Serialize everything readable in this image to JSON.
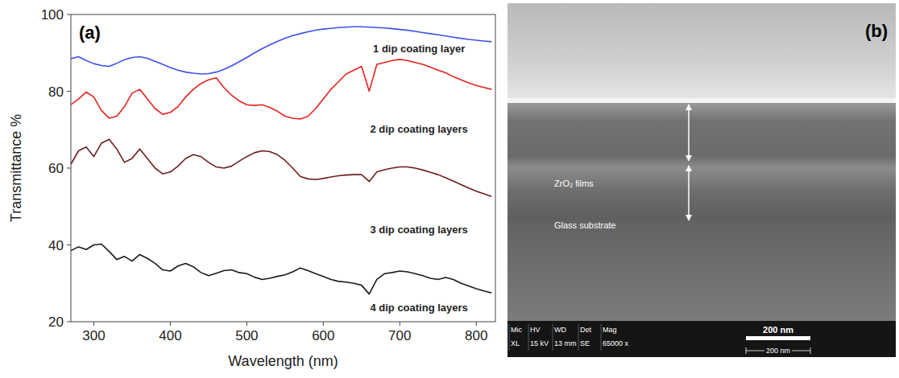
{
  "chart_data": {
    "type": "line",
    "panel_label": "(a)",
    "x_label": "Wavelength (nm)",
    "y_label": "Transmittance %",
    "xlim": [
      270,
      825
    ],
    "xticks": [
      300,
      400,
      500,
      600,
      700,
      800
    ],
    "ylim": [
      20,
      100
    ],
    "yticks": [
      20,
      40,
      60,
      80,
      100
    ],
    "grid": false,
    "x": [
      270,
      280,
      290,
      300,
      310,
      320,
      330,
      340,
      350,
      360,
      370,
      380,
      390,
      400,
      410,
      420,
      430,
      440,
      450,
      460,
      470,
      480,
      490,
      500,
      510,
      520,
      530,
      540,
      550,
      560,
      570,
      580,
      590,
      600,
      610,
      620,
      630,
      640,
      650,
      660,
      670,
      680,
      690,
      700,
      710,
      720,
      730,
      740,
      750,
      760,
      770,
      780,
      790,
      800,
      810,
      820
    ],
    "series": [
      {
        "name": "1 dip coating layer",
        "color": "#3f51e6",
        "values": [
          88.5,
          89,
          88,
          87.2,
          86.7,
          86.5,
          87.3,
          88.2,
          88.8,
          89,
          88.6,
          87.8,
          87,
          86.2,
          85.5,
          85,
          84.7,
          84.5,
          84.6,
          85,
          85.7,
          86.6,
          87.7,
          88.8,
          90,
          91.1,
          92.1,
          93,
          93.8,
          94.5,
          95,
          95.5,
          95.9,
          96.2,
          96.4,
          96.6,
          96.7,
          96.8,
          96.8,
          96.7,
          96.6,
          96.5,
          96.3,
          96.1,
          95.9,
          95.6,
          95.3,
          95,
          94.7,
          94.4,
          94.1,
          93.8,
          93.5,
          93.3,
          93.1,
          92.9
        ]
      },
      {
        "name": "2 dip coating layers",
        "color": "#e4231f",
        "values": [
          76.5,
          78,
          79.8,
          78.5,
          75,
          73,
          73.5,
          76,
          79.5,
          80.5,
          78,
          75.5,
          74,
          74.5,
          76,
          78.5,
          80.5,
          82,
          83,
          83.5,
          81,
          79,
          77.5,
          76.5,
          76.3,
          76.5,
          75.8,
          74.8,
          73.5,
          73,
          72.8,
          73.5,
          75.5,
          78,
          80.5,
          82.5,
          84.5,
          85.5,
          86.5,
          80,
          87,
          87.5,
          88,
          88.3,
          88,
          87.5,
          87,
          86.3,
          85.5,
          84.8,
          83.8,
          83,
          82.2,
          81.5,
          81,
          80.5
        ]
      },
      {
        "name": "3 dip coating layers",
        "color": "#6b1f1f",
        "values": [
          61,
          64.5,
          65.5,
          63,
          66.5,
          67.5,
          65,
          61.5,
          62.5,
          65,
          62.5,
          60,
          58.5,
          59,
          60.5,
          62.5,
          63.5,
          63,
          61.5,
          60.3,
          60,
          60.5,
          61.8,
          63,
          64,
          64.5,
          64.3,
          63.5,
          62,
          60,
          57.8,
          57.2,
          57,
          57.3,
          57.7,
          58,
          58.2,
          58.3,
          58.3,
          56.5,
          59,
          59.6,
          60,
          60.3,
          60.3,
          60,
          59.5,
          58.9,
          58.3,
          57.5,
          56.6,
          55.7,
          54.8,
          54,
          53.3,
          52.6
        ]
      },
      {
        "name": "4 dip coating layers",
        "color": "#1a1a1a",
        "values": [
          38.5,
          39.5,
          38.8,
          40,
          40.2,
          38.3,
          36.2,
          37,
          35.8,
          37.5,
          36.5,
          35.2,
          33.5,
          33.2,
          34.5,
          35.2,
          34.3,
          32.8,
          32,
          32.6,
          33.3,
          33.5,
          32.8,
          32.5,
          31.6,
          31,
          31.3,
          31.8,
          32.2,
          33,
          34,
          33.3,
          32.5,
          31.8,
          31,
          30.5,
          30.3,
          30,
          29.5,
          27.2,
          31,
          32.5,
          32.8,
          33.2,
          33,
          32.5,
          32,
          31.3,
          31,
          31.5,
          31,
          30,
          29.3,
          28.6,
          28,
          27.5
        ]
      }
    ]
  },
  "image": {
    "panel_label": "(b)",
    "film_label": "ZrO₂ films",
    "substrate_label": "Glass substrate",
    "scale_bar_label": "200 nm",
    "info_bar": {
      "headers": [
        "Mic",
        "HV",
        "WD",
        "Det",
        "Mag"
      ],
      "values": [
        "XL",
        "15 kV",
        "13 mm",
        "SE",
        "65000 x"
      ],
      "scale_label": "200 nm"
    }
  }
}
